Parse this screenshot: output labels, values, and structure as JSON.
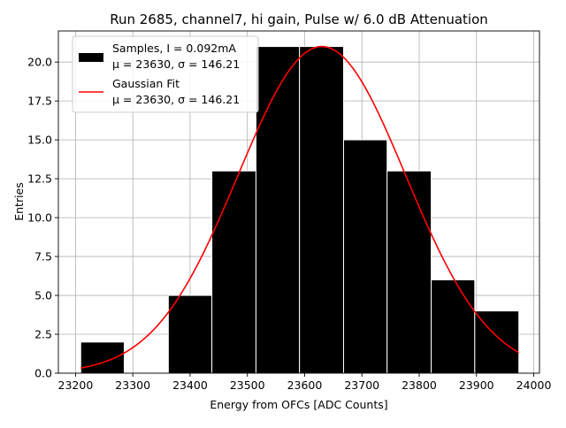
{
  "chart_data": {
    "type": "bar",
    "title": "Run 2685, channel7, hi gain, Pulse w/ 6.0 dB Attenuation",
    "xlabel": "Energy from OFCs [ADC Counts]",
    "ylabel": "Entries",
    "xlim": [
      23170,
      24010
    ],
    "ylim": [
      0,
      22
    ],
    "xticks": [
      23200,
      23300,
      23400,
      23500,
      23600,
      23700,
      23800,
      23900,
      24000
    ],
    "xtick_labels": [
      "23200",
      "23300",
      "23400",
      "23500",
      "23600",
      "23700",
      "23800",
      "23900",
      "24000"
    ],
    "yticks": [
      0,
      2.5,
      5,
      7.5,
      10,
      12.5,
      15,
      17.5,
      20
    ],
    "ytick_labels": [
      "0.0",
      "2.5",
      "5.0",
      "7.5",
      "10.0",
      "12.5",
      "15.0",
      "17.5",
      "20.0"
    ],
    "grid": true,
    "legend_position": "upper-left",
    "histogram": {
      "name": "Samples, I = 0.092mA",
      "stats_label": "μ = 23630, σ = 146.21",
      "color": "#000000",
      "edge_color": "#ffffff",
      "bins": [
        {
          "x0": 23209,
          "x1": 23285,
          "count": 2
        },
        {
          "x0": 23285,
          "x1": 23362,
          "count": 0
        },
        {
          "x0": 23362,
          "x1": 23438,
          "count": 5
        },
        {
          "x0": 23438,
          "x1": 23515,
          "count": 13
        },
        {
          "x0": 23515,
          "x1": 23591,
          "count": 21
        },
        {
          "x0": 23591,
          "x1": 23668,
          "count": 21
        },
        {
          "x0": 23668,
          "x1": 23744,
          "count": 15
        },
        {
          "x0": 23744,
          "x1": 23821,
          "count": 13
        },
        {
          "x0": 23821,
          "x1": 23897,
          "count": 6
        },
        {
          "x0": 23897,
          "x1": 23974,
          "count": 4
        }
      ]
    },
    "fit": {
      "name": "Gaussian Fit",
      "stats_label": "μ = 23630, σ = 146.21",
      "color": "#ff0000",
      "mu": 23630,
      "sigma": 146.21,
      "amplitude": 21,
      "x_range": [
        23209,
        23974
      ]
    }
  }
}
